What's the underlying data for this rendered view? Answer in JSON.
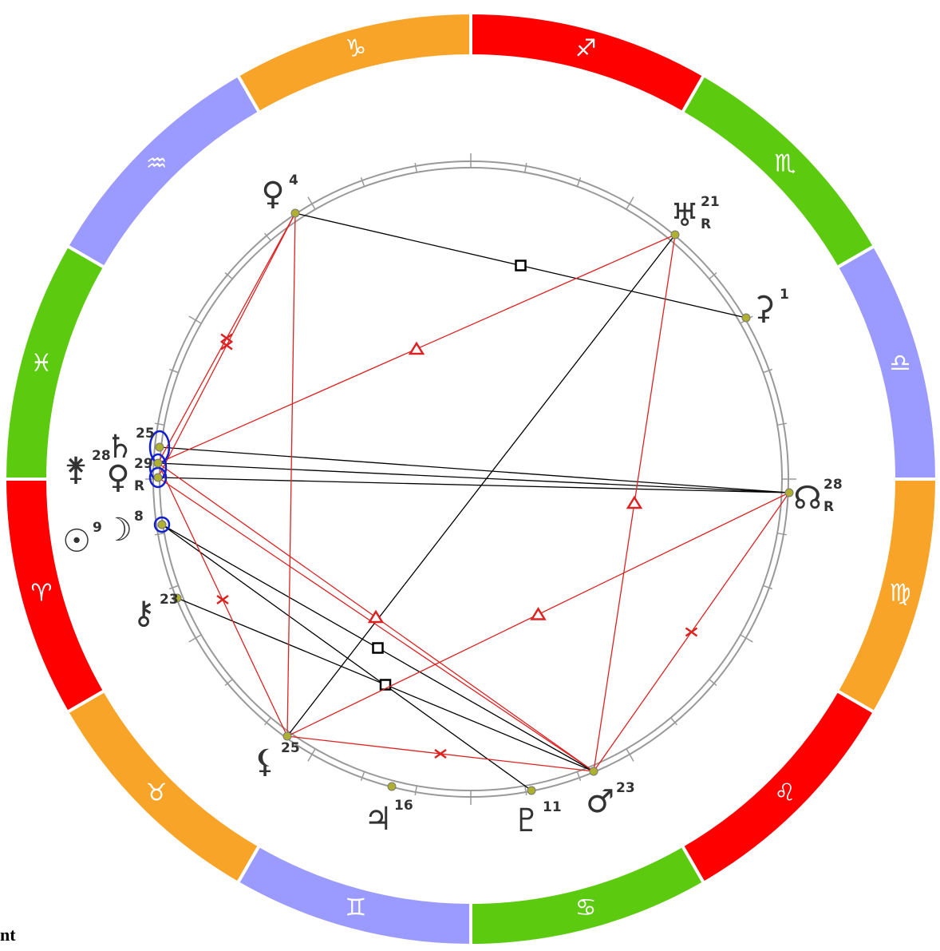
{
  "zodiac_signs": [
    {
      "glyph": "♈"
    },
    {
      "glyph": "♉"
    },
    {
      "glyph": "♊"
    },
    {
      "glyph": "♋"
    },
    {
      "glyph": "♌"
    },
    {
      "glyph": "♍"
    },
    {
      "glyph": "♎"
    },
    {
      "glyph": "♏"
    },
    {
      "glyph": "♐"
    },
    {
      "glyph": "♑"
    },
    {
      "glyph": "♒"
    },
    {
      "glyph": "♓"
    }
  ],
  "planets": [
    {
      "glyph": "♀",
      "degree": 4
    },
    {
      "glyph": "♅",
      "degree": 21,
      "retrograde": "R"
    },
    {
      "glyph": "⚳",
      "degree": 1
    },
    {
      "glyph": "☊",
      "degree": 28,
      "retrograde": "R"
    },
    {
      "glyph": "♄",
      "degree": 25
    },
    {
      "glyph": "⚵",
      "degree": 28
    },
    {
      "glyph": "♀",
      "degree": 29,
      "retrograde": "R"
    },
    {
      "glyph": "☉",
      "degree": 9
    },
    {
      "glyph": "☽",
      "degree": 8
    },
    {
      "glyph": "⚷",
      "degree": 23
    },
    {
      "glyph": "⚸",
      "degree": 25
    },
    {
      "glyph": "♃",
      "degree": 16
    },
    {
      "glyph": "♇",
      "degree": 11
    },
    {
      "glyph": "♂",
      "degree": 23
    }
  ],
  "footer_text": "nt"
}
